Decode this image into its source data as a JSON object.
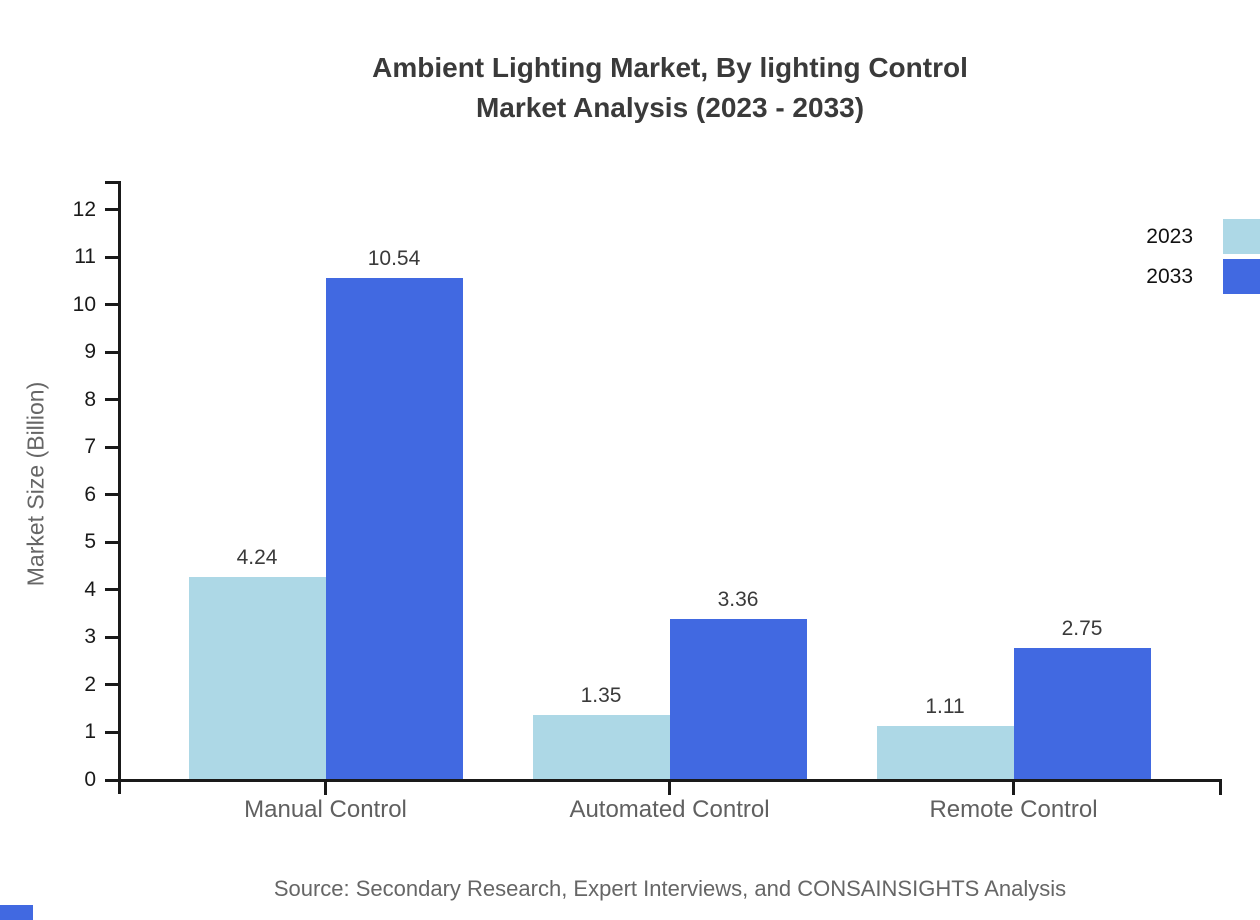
{
  "title": {
    "line1": "Ambient Lighting Market, By lighting Control",
    "line2": "Market Analysis (2023 - 2033)"
  },
  "y_axis": {
    "label": "Market Size (Billion)"
  },
  "source_note": "Source: Secondary Research, Expert Interviews, and CONSAINSIGHTS Analysis",
  "legend": {
    "items": [
      "2023",
      "2033"
    ]
  },
  "chart_data": {
    "type": "bar",
    "title": "Ambient Lighting Market, By lighting Control Market Analysis (2023 - 2033)",
    "categories": [
      "Manual Control",
      "Automated Control",
      "Remote Control"
    ],
    "series": [
      {
        "name": "2023",
        "color": "#ADD8E6",
        "values": [
          4.24,
          1.35,
          1.11
        ]
      },
      {
        "name": "2033",
        "color": "#4169E1",
        "values": [
          10.54,
          3.36,
          2.75
        ]
      }
    ],
    "xlabel": "",
    "ylabel": "Market Size (Billion)",
    "ylim": [
      0,
      12.6
    ],
    "yticks": [
      0,
      1,
      2,
      3,
      4,
      5,
      6,
      7,
      8,
      9,
      10,
      11,
      12
    ],
    "grid": false,
    "legend_position": "top-right",
    "value_labels": true
  },
  "colors": {
    "series_2023": "#ADD8E6",
    "series_2033": "#4169E1",
    "axis": "#1a1a1a",
    "title_text": "#3a3a3a",
    "muted_text": "#666666",
    "brand_mark": "#4169E1"
  }
}
